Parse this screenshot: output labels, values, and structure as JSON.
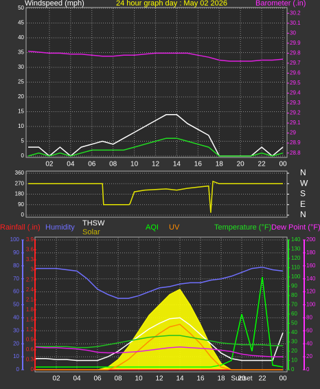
{
  "chart_data": [
    {
      "type": "line",
      "title": "24 hour graph day : May 02 2026",
      "title_color": "#ffff00",
      "ylabel": "Windspeed (mph)",
      "ylabel_color": "#ffffff",
      "y2label": "Barometer (.in)",
      "y2_color": "#ff30ff",
      "x": [
        0,
        1,
        2,
        3,
        4,
        5,
        6,
        7,
        8,
        9,
        10,
        11,
        12,
        13,
        14,
        15,
        16,
        17,
        18,
        19,
        20,
        21,
        22,
        23,
        24
      ],
      "xlim": [
        0,
        24
      ],
      "xticks": [
        {
          "value": 2,
          "label": "02"
        },
        {
          "value": 4,
          "label": "04"
        },
        {
          "value": 6,
          "label": "06"
        },
        {
          "value": 8,
          "label": "08"
        },
        10,
        12,
        14,
        16,
        18,
        20,
        22,
        {
          "value": 24,
          "label": "00"
        }
      ],
      "ylim": [
        0,
        50
      ],
      "yticks": [
        0,
        5,
        10,
        15,
        20,
        25,
        30,
        35,
        40,
        45,
        50
      ],
      "y2lim": [
        28.77,
        30.25
      ],
      "y2ticks": [
        28.8,
        28.9,
        29,
        29.1,
        29.2,
        29.3,
        29.4,
        29.5,
        29.6,
        29.7,
        29.8,
        29.9,
        30,
        30.1,
        30.2
      ],
      "grid": true,
      "series": [
        {
          "color": "#ffffff",
          "values": [
            3,
            3,
            0,
            3,
            0,
            3,
            4,
            5,
            4,
            6,
            8,
            10,
            12,
            14,
            14,
            11,
            9,
            7,
            0,
            0,
            0,
            0,
            3,
            0,
            3
          ]
        },
        {
          "color": "#22dd22",
          "values": [
            0,
            1,
            0,
            1,
            0,
            1,
            2,
            2,
            2,
            2,
            3,
            4,
            5,
            6,
            6,
            5,
            4,
            3,
            0,
            0,
            0,
            0,
            1,
            0,
            1
          ]
        },
        {
          "color": "#e020e0",
          "axis": "y2",
          "values": [
            29.82,
            29.81,
            29.8,
            29.8,
            29.79,
            29.79,
            29.78,
            29.77,
            29.77,
            29.78,
            29.78,
            29.79,
            29.8,
            29.8,
            29.8,
            29.8,
            29.78,
            29.76,
            29.73,
            29.72,
            29.72,
            29.72,
            29.73,
            29.73,
            29.74
          ]
        }
      ]
    },
    {
      "type": "line",
      "x": [
        0,
        7,
        7.1,
        9.5,
        9.6,
        10,
        11,
        12,
        13,
        14,
        15,
        16,
        17,
        17.2,
        17.4,
        18,
        24
      ],
      "xlim": [
        0,
        24
      ],
      "ylim": [
        0,
        360
      ],
      "yticks": [
        0,
        90,
        180,
        270,
        360
      ],
      "y2lim": [
        0,
        360
      ],
      "y2ticks": [
        {
          "value": 0,
          "label": "N"
        },
        {
          "value": 90,
          "label": "E"
        },
        {
          "value": 180,
          "label": "S"
        },
        {
          "value": 270,
          "label": "W"
        },
        {
          "value": 360,
          "label": "N"
        }
      ],
      "grid": true,
      "series": [
        {
          "color": "#e6e600",
          "values": [
            270,
            270,
            90,
            90,
            100,
            200,
            215,
            220,
            225,
            215,
            230,
            240,
            250,
            20,
            290,
            270,
            270
          ]
        }
      ]
    },
    {
      "type": "line",
      "x": [
        0,
        1,
        2,
        3,
        4,
        5,
        6,
        7,
        8,
        9,
        10,
        11,
        12,
        13,
        14,
        15,
        16,
        17,
        18,
        19,
        20,
        21,
        22,
        23,
        24
      ],
      "xlim": [
        0,
        24
      ],
      "xticks": [
        {
          "value": 2,
          "label": "02"
        },
        {
          "value": 4,
          "label": "04"
        },
        {
          "value": 6,
          "label": "06"
        },
        {
          "value": 8,
          "label": "08"
        },
        10,
        12,
        14,
        16,
        18,
        20,
        22,
        {
          "value": 24,
          "label": "00"
        }
      ],
      "annotations": [
        {
          "text": "Sunset",
          "x": 20
        }
      ],
      "axes": [
        {
          "label": "Rainfall (.in)",
          "color": "#ff2020",
          "lim": [
            0,
            3.9
          ],
          "ticks": [
            0,
            0.3,
            0.6,
            0.9,
            1.2,
            1.5,
            1.8,
            2.1,
            2.4,
            2.7,
            3,
            3.3,
            3.6,
            3.9
          ]
        },
        {
          "label": "Humidity",
          "color": "#7070ff",
          "lim": [
            0,
            100
          ],
          "ticks": [
            0,
            10,
            20,
            30,
            40,
            50,
            60,
            70,
            80,
            90,
            100
          ],
          "grid": true
        },
        {
          "label": "Temperature (°F)",
          "color": "#20e020",
          "lim": [
            0,
            140
          ],
          "ticks": [
            0,
            10,
            20,
            30,
            40,
            50,
            60,
            70,
            80,
            90,
            100,
            110,
            120,
            130,
            140
          ]
        },
        {
          "label": "Dew Point (°F)",
          "color": "#ff30ff",
          "lim": [
            0,
            200
          ],
          "ticks": [
            0,
            20,
            40,
            60,
            80,
            100,
            120,
            140,
            160,
            180,
            200
          ]
        }
      ],
      "series": [
        {
          "color": "#ff2020",
          "axis": 0,
          "values": [
            0,
            0,
            0,
            0,
            0,
            0,
            0,
            0,
            0,
            0,
            0,
            0,
            0,
            0,
            0,
            0,
            0,
            0,
            0,
            0,
            0,
            0,
            0,
            0,
            0
          ]
        },
        {
          "color": "#7070ff",
          "axis": 1,
          "values": [
            78,
            78,
            78,
            77,
            76,
            70,
            62,
            58,
            55,
            55,
            57,
            60,
            63,
            64,
            66,
            67,
            67,
            69,
            70,
            72,
            75,
            78,
            79,
            77,
            76
          ]
        },
        {
          "name": "THSW",
          "color": "#ffffff",
          "axis": 2,
          "values": [
            12,
            12,
            11,
            11,
            10,
            10,
            10,
            14,
            20,
            28,
            36,
            44,
            50,
            55,
            56,
            48,
            38,
            28,
            18,
            12,
            10,
            10,
            10,
            10,
            40
          ]
        },
        {
          "name": "Solar",
          "color": "#ffff00",
          "label_color": "#c8b400",
          "axis": 1,
          "area": true,
          "values": [
            0,
            0,
            0,
            0,
            0,
            0,
            0,
            2,
            8,
            18,
            30,
            42,
            50,
            58,
            62,
            50,
            35,
            18,
            5,
            0,
            0,
            0,
            0,
            0,
            0
          ]
        },
        {
          "name": "AQI",
          "color": "#00ff00",
          "axis": 2,
          "values": [
            3,
            3,
            3,
            3,
            3,
            3,
            3,
            3,
            3,
            3,
            3,
            3,
            3,
            3,
            3,
            3,
            3,
            3,
            5,
            10,
            60,
            20,
            100,
            5,
            3
          ]
        },
        {
          "name": "UV",
          "color": "#ff8c00",
          "axis": 1,
          "values": [
            0,
            0,
            0,
            0,
            0,
            0,
            0,
            0,
            3,
            8,
            15,
            22,
            28,
            33,
            35,
            28,
            20,
            10,
            2,
            0,
            0,
            0,
            0,
            0,
            0
          ]
        },
        {
          "color": "#20c020",
          "axis": 2,
          "values": [
            25,
            25,
            25,
            25,
            24,
            24,
            25,
            27,
            29,
            31,
            33,
            35,
            36,
            37,
            37,
            35,
            33,
            31,
            29,
            28,
            27,
            27,
            27,
            26,
            26
          ]
        },
        {
          "color": "#e020e0",
          "axis": 3,
          "values": [
            35,
            34,
            34,
            33,
            32,
            30,
            27,
            26,
            26,
            27,
            28,
            30,
            32,
            34,
            35,
            34,
            33,
            32,
            30,
            28,
            24,
            22,
            21,
            20,
            20
          ]
        }
      ]
    }
  ]
}
